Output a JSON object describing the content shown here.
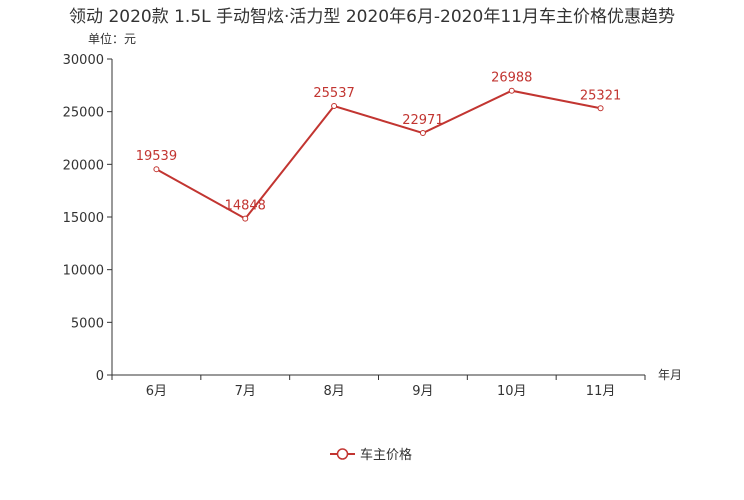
{
  "chart_data": {
    "type": "line",
    "title": "领动 2020款 1.5L 手动智炫·活力型 2020年6月-2020年11月车主价格优惠趋势",
    "ylabel": "单位：元",
    "xlabel": "年月",
    "categories": [
      "6月",
      "7月",
      "8月",
      "9月",
      "10月",
      "11月"
    ],
    "series": [
      {
        "name": "车主价格",
        "values": [
          19539,
          14848,
          25537,
          22971,
          26988,
          25321
        ]
      }
    ],
    "ylim": [
      0,
      30000
    ],
    "yticks": [
      0,
      5000,
      10000,
      15000,
      20000,
      25000,
      30000
    ],
    "grid": false,
    "legend": "bottom-center",
    "color": "#c23531"
  }
}
